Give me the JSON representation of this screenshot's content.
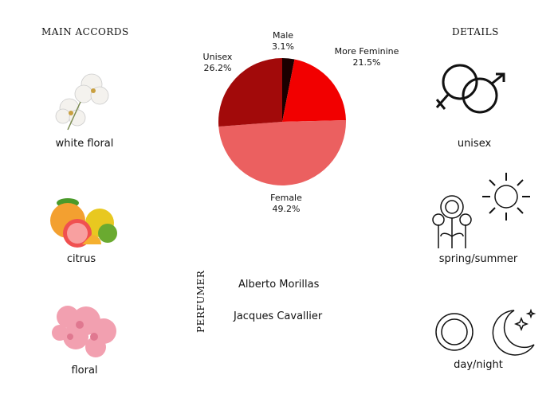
{
  "left": {
    "title": "MAIN ACCORDS",
    "items": [
      {
        "label": "white floral",
        "icon": "white-orchid-image"
      },
      {
        "label": "citrus",
        "icon": "citrus-fruits-image"
      },
      {
        "label": "floral",
        "icon": "pink-carnation-image"
      }
    ]
  },
  "right": {
    "title": "DETAILS",
    "items": [
      {
        "label": "unisex",
        "icon": "gender-symbols-icon"
      },
      {
        "label": "spring/summer",
        "icon": "flowers-sun-icon"
      },
      {
        "label": "day/night",
        "icon": "sun-moon-icon"
      }
    ]
  },
  "perfumer": {
    "title": "PERFUMER",
    "names": [
      "Alberto Morillas",
      "Jacques Cavallier"
    ]
  },
  "chart_data": {
    "type": "pie",
    "slices": [
      {
        "name": "Male",
        "value": 3.1,
        "label": "3.1%",
        "color": "#1a0000"
      },
      {
        "name": "More Feminine",
        "value": 21.5,
        "label": "21.5%",
        "color": "#f20000"
      },
      {
        "name": "Female",
        "value": 49.2,
        "label": "49.2%",
        "color": "#eb6060"
      },
      {
        "name": "Unisex",
        "value": 26.2,
        "label": "26.2%",
        "color": "#a20a0a"
      }
    ],
    "start": "12 o'clock",
    "direction": "clockwise"
  }
}
